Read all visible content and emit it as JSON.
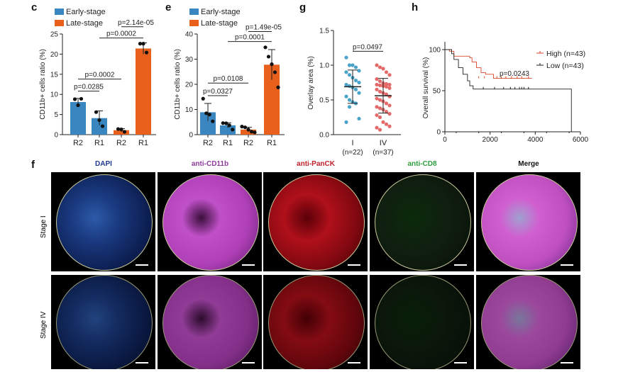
{
  "panel_labels": {
    "c": "c",
    "e": "e",
    "g": "g",
    "h": "h",
    "f": "f"
  },
  "colors": {
    "early": "#3a86c0",
    "late": "#e8601c",
    "g_I": "#4aa3c8",
    "g_IV": "#e46a6a",
    "high": "#d9472b",
    "low": "#222222"
  },
  "chart_data": [
    {
      "id": "c",
      "type": "bar",
      "ylabel": "CD11b+ cells ratio (%)",
      "ylim": [
        0,
        25
      ],
      "yticks": [
        0,
        5,
        10,
        15,
        20,
        25
      ],
      "categories": [
        "R2",
        "R1",
        "R2",
        "R1"
      ],
      "groups": [
        "Early-stage",
        "Early-stage",
        "Late-stage",
        "Late-stage"
      ],
      "legend": [
        "Early-stage",
        "Late-stage"
      ],
      "values": [
        8.1,
        4.1,
        1.1,
        21.4
      ],
      "errors": [
        0.9,
        1.8,
        0.4,
        1.4
      ],
      "points": [
        [
          8.8,
          7.3,
          8.9
        ],
        [
          5.6,
          3.6,
          2.1
        ],
        [
          1.4,
          1.3,
          0.7
        ],
        [
          22.6,
          22.6,
          20.4
        ]
      ],
      "annotations": [
        {
          "text": "p=0.0285",
          "from": 0,
          "to": 1,
          "y": 10.8
        },
        {
          "text": "p=0.0002",
          "from": 0,
          "to": 2,
          "y": 13.8
        },
        {
          "text": "p=0.0002",
          "from": 1,
          "to": 3,
          "y": 24.0
        },
        {
          "text": "p=2.14e-05",
          "from": 2,
          "to": 3,
          "y": 26.8
        }
      ]
    },
    {
      "id": "e",
      "type": "bar",
      "ylabel": "CD11b+ cells ratio (%)",
      "ylim": [
        0,
        40
      ],
      "yticks": [
        0,
        10,
        20,
        30,
        40
      ],
      "categories": [
        "R2",
        "R1",
        "R2",
        "R1"
      ],
      "groups": [
        "Early-stage",
        "Early-stage",
        "Late-stage",
        "Late-stage"
      ],
      "legend": [
        "Early-stage",
        "Late-stage"
      ],
      "values": [
        8.9,
        3.7,
        2.0,
        27.8
      ],
      "errors": [
        3.5,
        1.0,
        0.9,
        6.0
      ],
      "points": [
        [
          14.3,
          8.5,
          8.0,
          5.3
        ],
        [
          4.6,
          4.5,
          3.7,
          2.0
        ],
        [
          3.2,
          2.9,
          2.0,
          1.2,
          0.9
        ],
        [
          34.7,
          31.0,
          28.0,
          24.8,
          18.8
        ]
      ],
      "annotations": [
        {
          "text": "p=0.0327",
          "from": 0,
          "to": 1,
          "y": 15.5
        },
        {
          "text": "p=0.0108",
          "from": 0,
          "to": 2,
          "y": 20.5
        },
        {
          "text": "p=0.0001",
          "from": 1,
          "to": 3,
          "y": 37.0
        },
        {
          "text": "p=1.49e-05",
          "from": 2,
          "to": 3,
          "y": 41.0
        }
      ]
    },
    {
      "id": "g",
      "type": "scatter",
      "ylabel": "Overlay area (%)",
      "ylim": [
        0,
        1.5
      ],
      "yticks": [
        "0.0",
        "0.5",
        "1.0",
        "1.5"
      ],
      "categories": [
        "I",
        "IV"
      ],
      "counts": [
        "(n=22)",
        "(n=37)"
      ],
      "means": [
        0.69,
        0.56
      ],
      "sd": [
        0.24,
        0.25
      ],
      "annotation": "p=0.0497",
      "values": [
        [
          1.11,
          1.0,
          1.0,
          0.97,
          0.92,
          0.9,
          0.86,
          0.82,
          0.78,
          0.75,
          0.72,
          0.7,
          0.68,
          0.65,
          0.6,
          0.55,
          0.5,
          0.47,
          0.45,
          0.23,
          0.18,
          0.4
        ],
        [
          1.0,
          0.97,
          0.95,
          0.9,
          0.86,
          0.8,
          0.77,
          0.74,
          0.73,
          0.72,
          0.72,
          0.71,
          0.7,
          0.69,
          0.67,
          0.65,
          0.62,
          0.6,
          0.58,
          0.55,
          0.52,
          0.5,
          0.48,
          0.45,
          0.42,
          0.4,
          0.38,
          0.36,
          0.33,
          0.3,
          0.28,
          0.25,
          0.18,
          0.15,
          0.12,
          0.1,
          0.07
        ]
      ]
    },
    {
      "id": "h",
      "type": "line",
      "subtype": "kaplan-meier",
      "ylabel": "Overall survival (%)",
      "xlim": [
        0,
        6000
      ],
      "ylim": [
        0,
        100
      ],
      "xticks": [
        0,
        2000,
        4000,
        6000
      ],
      "yticks": [
        0,
        50,
        100
      ],
      "annotation": "p=0.0243",
      "series": [
        {
          "name": "High (n=43)",
          "steps": [
            [
              0,
              100
            ],
            [
              200,
              98
            ],
            [
              400,
              92
            ],
            [
              1100,
              90
            ],
            [
              1200,
              85
            ],
            [
              1400,
              78
            ],
            [
              1600,
              72
            ],
            [
              1800,
              70
            ],
            [
              2150,
              65
            ],
            [
              3850,
              65
            ]
          ],
          "censor": [
            1500,
            1750,
            2300,
            2500,
            2700,
            2950,
            3200,
            3400,
            3700
          ]
        },
        {
          "name": "Low (n=43)",
          "steps": [
            [
              0,
              100
            ],
            [
              300,
              95
            ],
            [
              400,
              88
            ],
            [
              600,
              78
            ],
            [
              800,
              70
            ],
            [
              1000,
              62
            ],
            [
              1100,
              56
            ],
            [
              1250,
              52
            ],
            [
              5600,
              52
            ],
            [
              5600,
              0
            ]
          ],
          "censor": [
            1700,
            2200,
            2600,
            2900,
            3100,
            3300,
            3400,
            3500,
            3700
          ]
        }
      ]
    }
  ],
  "panel_f": {
    "columns": [
      "DAPI",
      "anti-CD11b",
      "anti-PanCK",
      "anti-CD8",
      "Merge"
    ],
    "column_colors": [
      "#1f3a93",
      "#8e3b9c",
      "#c0212b",
      "#2e9e3e",
      "#111111"
    ],
    "rows": [
      "Stage I",
      "Stage IV"
    ]
  }
}
